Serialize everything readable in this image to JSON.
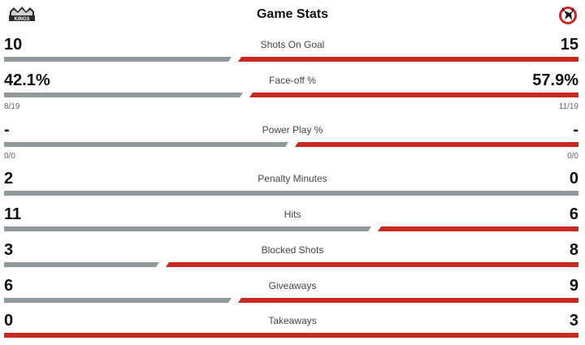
{
  "header": {
    "title": "Game Stats",
    "home_logo_text": "KINGS",
    "home_logo_icon": "la-kings-logo",
    "away_logo_icon": "nj-devils-logo"
  },
  "colors": {
    "home": "#8f989b",
    "away": "#c8281f"
  },
  "stats": [
    {
      "label": "Shots On Goal",
      "home": "10",
      "away": "15",
      "home_share": 0.4
    },
    {
      "label": "Face-off %",
      "home": "42.1%",
      "away": "57.9%",
      "home_sub": "8/19",
      "away_sub": "11/19",
      "home_share": 0.421
    },
    {
      "label": "Power Play %",
      "home": "-",
      "away": "-",
      "home_sub": "0/0",
      "away_sub": "0/0",
      "home_share": 0.5
    },
    {
      "label": "Penalty Minutes",
      "home": "2",
      "away": "0",
      "home_share": 1.0
    },
    {
      "label": "Hits",
      "home": "11",
      "away": "6",
      "home_share": 0.647
    },
    {
      "label": "Blocked Shots",
      "home": "3",
      "away": "8",
      "home_share": 0.273
    },
    {
      "label": "Giveaways",
      "home": "6",
      "away": "9",
      "home_share": 0.4
    },
    {
      "label": "Takeaways",
      "home": "0",
      "away": "3",
      "home_share": 0.0
    }
  ]
}
